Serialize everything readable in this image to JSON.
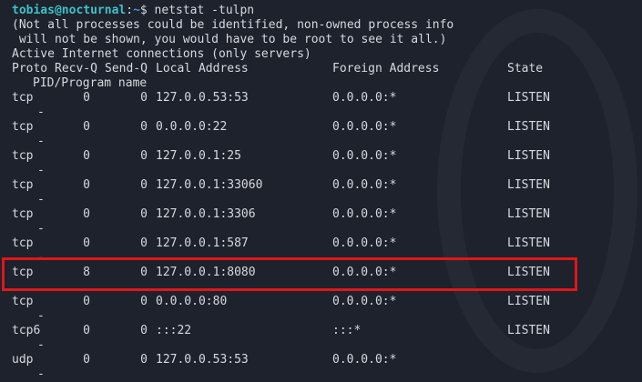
{
  "prompt": {
    "user_host": "tobias@nocturnal",
    "sep": ":",
    "path": "~",
    "symbol": "$ ",
    "command": "netstat -tulpn"
  },
  "messages": [
    "(Not all processes could be identified, non-owned process info",
    " will not be shown, you would have to be root to see it all.)",
    "Active Internet connections (only servers)"
  ],
  "headers": {
    "proto": "Proto",
    "recvq": "Recv-Q",
    "sendq": "Send-Q",
    "local": "Local Address",
    "foreign": "Foreign Address",
    "state": "State",
    "pid": "PID/Program name"
  },
  "rows": [
    {
      "proto": "tcp",
      "recvq": "0",
      "sendq": "0",
      "local": "127.0.0.53:53",
      "foreign": "0.0.0.0:*",
      "state": "LISTEN",
      "pid": "-"
    },
    {
      "proto": "tcp",
      "recvq": "0",
      "sendq": "0",
      "local": "0.0.0.0:22",
      "foreign": "0.0.0.0:*",
      "state": "LISTEN",
      "pid": "-"
    },
    {
      "proto": "tcp",
      "recvq": "0",
      "sendq": "0",
      "local": "127.0.0.1:25",
      "foreign": "0.0.0.0:*",
      "state": "LISTEN",
      "pid": "-"
    },
    {
      "proto": "tcp",
      "recvq": "0",
      "sendq": "0",
      "local": "127.0.0.1:33060",
      "foreign": "0.0.0.0:*",
      "state": "LISTEN",
      "pid": "-"
    },
    {
      "proto": "tcp",
      "recvq": "0",
      "sendq": "0",
      "local": "127.0.0.1:3306",
      "foreign": "0.0.0.0:*",
      "state": "LISTEN",
      "pid": "-"
    },
    {
      "proto": "tcp",
      "recvq": "0",
      "sendq": "0",
      "local": "127.0.0.1:587",
      "foreign": "0.0.0.0:*",
      "state": "LISTEN",
      "pid": "-"
    },
    {
      "proto": "tcp",
      "recvq": "8",
      "sendq": "0",
      "local": "127.0.0.1:8080",
      "foreign": "0.0.0.0:*",
      "state": "LISTEN",
      "pid": "",
      "highlighted": true
    },
    {
      "proto": "tcp",
      "recvq": "0",
      "sendq": "0",
      "local": "0.0.0.0:80",
      "foreign": "0.0.0.0:*",
      "state": "LISTEN",
      "pid": "-"
    },
    {
      "proto": "tcp6",
      "recvq": "0",
      "sendq": "0",
      "local": ":::22",
      "foreign": ":::*",
      "state": "LISTEN",
      "pid": "-"
    },
    {
      "proto": "udp",
      "recvq": "0",
      "sendq": "0",
      "local": "127.0.0.53:53",
      "foreign": "0.0.0.0:*",
      "state": "",
      "pid": "-"
    }
  ],
  "colors": {
    "background": "#1e222c",
    "text": "#d6d9de",
    "prompt_user": "#3fc1c9",
    "prompt_path": "#4a8fe0",
    "highlight_box": "#e0161b"
  }
}
